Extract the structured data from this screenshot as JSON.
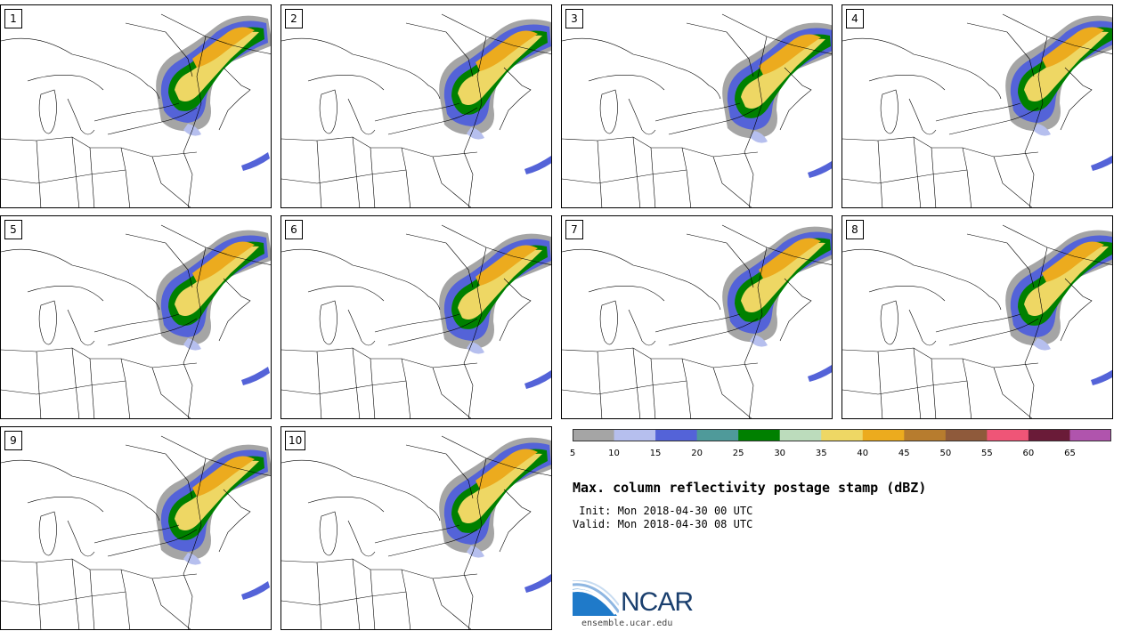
{
  "panels": [
    {
      "label": "1"
    },
    {
      "label": "2"
    },
    {
      "label": "3"
    },
    {
      "label": "4"
    },
    {
      "label": "5"
    },
    {
      "label": "6"
    },
    {
      "label": "7"
    },
    {
      "label": "8"
    },
    {
      "label": "9"
    },
    {
      "label": "10"
    }
  ],
  "colorbar": {
    "colors": [
      "#a5a5a5",
      "#b6bfee",
      "#5463d8",
      "#4f9a9a",
      "#008000",
      "#bcdcbc",
      "#eed764",
      "#ecab1e",
      "#b77c2e",
      "#8f5a3b",
      "#ef5577",
      "#6a1b38",
      "#b054ad"
    ],
    "ticks": [
      "5",
      "10",
      "15",
      "20",
      "25",
      "30",
      "35",
      "40",
      "45",
      "50",
      "55",
      "60",
      "65"
    ]
  },
  "title": "Max. column reflectivity postage stamp (dBZ)",
  "init": " Init: Mon 2018-04-30 00 UTC",
  "valid": "Valid: Mon 2018-04-30 08 UTC",
  "logo": {
    "name": "NCAR",
    "url": "ensemble.ucar.edu"
  }
}
